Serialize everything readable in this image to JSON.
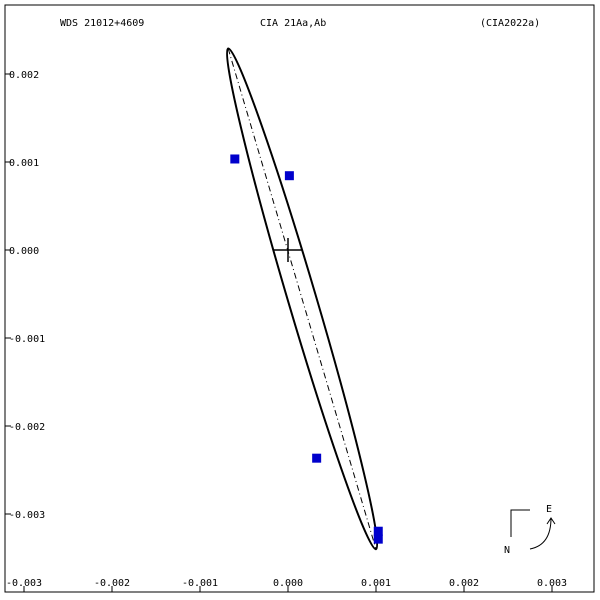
{
  "header": {
    "left": "WDS 21012+4609",
    "center": "CIA  21Aa,Ab",
    "right": "(CIA2022a)"
  },
  "compass": {
    "east_label": "E",
    "north_label": "N"
  },
  "chart_data": {
    "type": "scatter",
    "title": "",
    "xlabel": "",
    "ylabel": "",
    "xlim": [
      -0.003,
      0.0035
    ],
    "ylim": [
      -0.0038,
      0.0028
    ],
    "x_ticks": [
      -0.003,
      -0.002,
      -0.001,
      0.0,
      0.001,
      0.002,
      0.003
    ],
    "x_tick_labels": [
      "-0.003",
      "-0.002",
      "-0.001",
      "0.000",
      "0.001",
      "0.002",
      "0.003"
    ],
    "y_ticks": [
      0.002,
      0.001,
      0.0,
      -0.001,
      -0.002,
      -0.003
    ],
    "y_tick_labels": [
      "0.002",
      "0.001",
      "0.000",
      "-0.001",
      "-0.002",
      "-0.003"
    ],
    "primary": {
      "x": 0.0,
      "y": 0.0
    },
    "orbit": {
      "endpoint_a": {
        "x": -0.00068,
        "y": 0.00229
      },
      "endpoint_b": {
        "x": 0.001,
        "y": -0.0034
      },
      "semi_minor": 0.00016
    },
    "observations": {
      "x": [
        -0.00061,
        1e-05,
        0.00032,
        0.00102,
        0.00102
      ],
      "y": [
        0.00104,
        0.00085,
        -0.00236,
        -0.00319,
        -0.00328
      ]
    },
    "grid": false,
    "colors": {
      "observation": "#0000cc",
      "curve": "#000000"
    }
  }
}
